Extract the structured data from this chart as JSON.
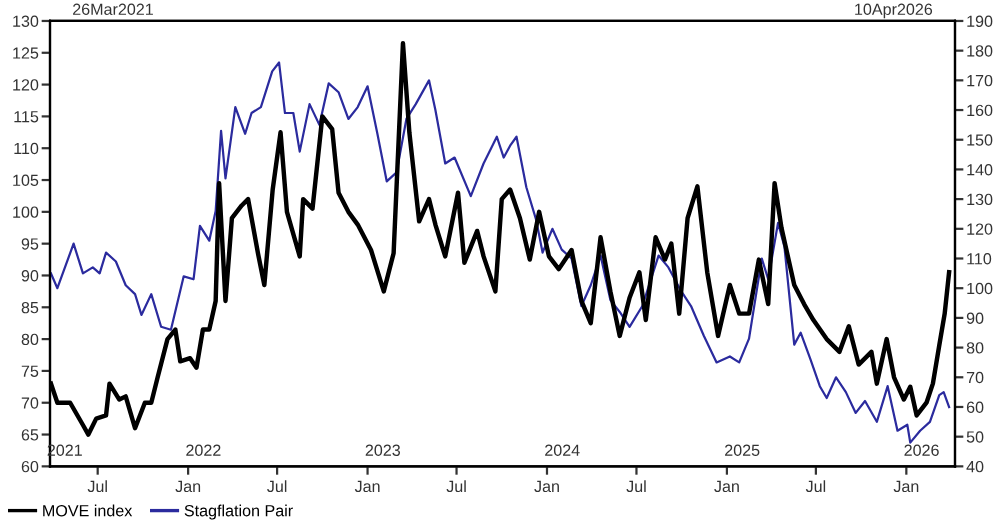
{
  "chart_data": {
    "type": "line",
    "annotations": [
      "26Mar2021",
      "10Apr2026"
    ],
    "xlim": [
      "2021-03-26",
      "2026-04-10"
    ],
    "xticks": [
      {
        "value": "2021-07-01",
        "label": "Jul"
      },
      {
        "value": "2022-01-01",
        "label": "Jan"
      },
      {
        "value": "2022-07-01",
        "label": "Jul"
      },
      {
        "value": "2023-01-01",
        "label": "Jan"
      },
      {
        "value": "2023-07-01",
        "label": "Jul"
      },
      {
        "value": "2024-01-01",
        "label": "Jan"
      },
      {
        "value": "2024-07-01",
        "label": "Jul"
      },
      {
        "value": "2025-01-01",
        "label": "Jan"
      },
      {
        "value": "2025-07-01",
        "label": "Jul"
      },
      {
        "value": "2026-01-01",
        "label": "Jan"
      }
    ],
    "x2lim": [
      "2021-03-26",
      "2026-04-10"
    ],
    "x2ticks": [
      {
        "value": "2021-04-25",
        "label": "2021"
      },
      {
        "value": "2022-02-01",
        "label": "2022"
      },
      {
        "value": "2023-02-01",
        "label": "2023"
      },
      {
        "value": "2024-02-01",
        "label": "2024"
      },
      {
        "value": "2025-02-01",
        "label": "2025"
      },
      {
        "value": "2026-02-01",
        "label": "2026"
      }
    ],
    "ylim": [
      60,
      130
    ],
    "yticks": [
      60,
      65,
      70,
      75,
      80,
      85,
      90,
      95,
      100,
      105,
      110,
      115,
      120,
      125,
      130
    ],
    "y2lim": [
      40,
      190
    ],
    "y2ticks": [
      40,
      50,
      60,
      70,
      80,
      90,
      100,
      110,
      120,
      130,
      140,
      150,
      160,
      170,
      180,
      190
    ],
    "grid": false,
    "legend": "bottom left",
    "marker": "none",
    "line_style": "solid",
    "series": [
      {
        "name": "MOVE index",
        "color": "#000000",
        "axis": "y",
        "x": [
          "2021-03-28",
          "2021-04-10",
          "2021-05-06",
          "2021-06-01",
          "2021-06-12",
          "2021-06-28",
          "2021-07-18",
          "2021-07-25",
          "2021-08-14",
          "2021-08-27",
          "2021-09-15",
          "2021-10-05",
          "2021-10-18",
          "2021-10-31",
          "2021-11-20",
          "2021-12-06",
          "2021-12-16",
          "2022-01-05",
          "2022-01-18",
          "2022-01-31",
          "2022-02-13",
          "2022-02-26",
          "2022-03-05",
          "2022-03-18",
          "2022-03-31",
          "2022-04-20",
          "2022-05-03",
          "2022-05-23",
          "2022-06-05",
          "2022-06-22",
          "2022-07-08",
          "2022-07-21",
          "2022-08-16",
          "2022-08-23",
          "2022-09-11",
          "2022-10-01",
          "2022-10-21",
          "2022-11-03",
          "2022-11-23",
          "2022-12-12",
          "2023-01-08",
          "2023-02-03",
          "2023-02-23",
          "2023-03-14",
          "2023-03-27",
          "2023-04-16",
          "2023-05-06",
          "2023-05-19",
          "2023-06-08",
          "2023-07-04",
          "2023-07-17",
          "2023-08-12",
          "2023-08-25",
          "2023-09-18",
          "2023-10-01",
          "2023-10-18",
          "2023-11-07",
          "2023-11-27",
          "2023-12-16",
          "2024-01-05",
          "2024-01-25",
          "2024-02-20",
          "2024-03-11",
          "2024-03-30",
          "2024-04-19",
          "2024-05-09",
          "2024-05-28",
          "2024-06-17",
          "2024-07-07",
          "2024-07-20",
          "2024-08-09",
          "2024-08-28",
          "2024-09-10",
          "2024-09-26",
          "2024-10-13",
          "2024-11-02",
          "2024-11-22",
          "2024-12-14",
          "2025-01-07",
          "2025-01-26",
          "2025-02-15",
          "2025-03-07",
          "2025-03-26",
          "2025-04-08",
          "2025-04-22",
          "2025-05-18",
          "2025-06-07",
          "2025-06-26",
          "2025-07-23",
          "2025-08-18",
          "2025-09-06",
          "2025-09-26",
          "2025-10-22",
          "2025-11-02",
          "2025-11-22",
          "2025-12-07",
          "2025-12-27",
          "2026-01-09",
          "2026-01-22",
          "2026-02-11",
          "2026-02-24",
          "2026-03-09",
          "2026-03-20",
          "2026-03-29"
        ],
        "values": [
          73,
          70,
          70,
          66.5,
          65,
          67.5,
          68,
          73,
          70.5,
          71,
          66,
          70,
          70,
          74,
          80,
          81.5,
          76.5,
          77,
          75.5,
          81.5,
          81.5,
          86,
          104.5,
          86,
          99,
          101,
          102,
          93.5,
          88.5,
          103.5,
          112.5,
          100,
          93,
          102,
          100.5,
          115,
          113,
          103,
          100,
          98,
          94,
          87.5,
          93.5,
          126.5,
          112.5,
          98.5,
          102,
          98,
          93,
          103,
          92,
          97,
          93,
          87.5,
          102,
          103.5,
          99,
          92.5,
          100,
          93,
          91,
          94,
          86,
          82.5,
          96,
          87.5,
          80.5,
          86.5,
          90.5,
          83,
          96,
          92.5,
          95,
          84,
          99,
          104,
          90.5,
          80.5,
          88.5,
          84,
          84,
          92.5,
          85.5,
          104.5,
          97.5,
          88.5,
          85.5,
          83,
          80,
          78,
          82,
          76,
          78,
          73,
          80,
          74,
          70.5,
          72.5,
          68,
          70,
          73,
          79,
          84,
          90.5
        ]
      },
      {
        "name": "Stagflation Pair",
        "color": "#2b2b9e",
        "axis": "y2",
        "x": [
          "2021-03-28",
          "2021-04-10",
          "2021-05-13",
          "2021-06-01",
          "2021-06-21",
          "2021-07-05",
          "2021-07-18",
          "2021-08-07",
          "2021-08-27",
          "2021-09-15",
          "2021-09-28",
          "2021-10-18",
          "2021-11-07",
          "2021-11-27",
          "2021-12-23",
          "2022-01-12",
          "2022-01-25",
          "2022-02-13",
          "2022-02-26",
          "2022-03-09",
          "2022-03-18",
          "2022-04-07",
          "2022-04-27",
          "2022-05-10",
          "2022-05-29",
          "2022-06-21",
          "2022-07-05",
          "2022-07-17",
          "2022-08-03",
          "2022-08-16",
          "2022-09-05",
          "2022-09-25",
          "2022-10-14",
          "2022-11-03",
          "2022-11-23",
          "2022-12-12",
          "2023-01-01",
          "2023-01-21",
          "2023-02-09",
          "2023-03-01",
          "2023-03-21",
          "2023-04-09",
          "2023-05-06",
          "2023-05-19",
          "2023-06-08",
          "2023-06-27",
          "2023-07-30",
          "2023-08-25",
          "2023-09-21",
          "2023-10-05",
          "2023-10-18",
          "2023-10-31",
          "2023-11-20",
          "2023-12-10",
          "2023-12-23",
          "2024-01-12",
          "2024-01-31",
          "2024-02-20",
          "2024-03-11",
          "2024-03-30",
          "2024-04-19",
          "2024-05-09",
          "2024-05-28",
          "2024-06-17",
          "2024-07-13",
          "2024-08-15",
          "2024-09-04",
          "2024-09-30",
          "2024-10-20",
          "2024-11-15",
          "2024-12-11",
          "2025-01-07",
          "2025-01-26",
          "2025-02-15",
          "2025-03-13",
          "2025-03-26",
          "2025-04-15",
          "2025-04-28",
          "2025-05-18",
          "2025-05-31",
          "2025-06-20",
          "2025-07-09",
          "2025-07-23",
          "2025-08-11",
          "2025-08-31",
          "2025-09-20",
          "2025-10-09",
          "2025-11-02",
          "2025-11-24",
          "2025-12-14",
          "2026-01-03",
          "2026-01-09",
          "2026-01-29",
          "2026-02-18",
          "2026-03-09",
          "2026-03-18",
          "2026-03-29"
        ],
        "values": [
          105,
          100,
          115,
          105,
          107,
          105,
          112,
          109,
          101,
          98,
          91,
          98,
          87,
          86,
          104,
          103,
          121,
          116,
          126,
          153,
          137,
          161,
          152,
          159,
          161,
          173,
          176,
          159,
          159,
          146,
          162,
          155,
          169,
          166,
          157,
          161,
          168,
          152,
          136,
          139,
          157,
          162,
          170,
          160,
          142,
          144,
          131,
          142,
          151,
          144,
          148,
          151,
          134,
          123,
          112,
          120,
          113,
          110,
          94,
          101,
          111,
          96,
          92,
          87,
          94,
          111,
          107,
          99,
          94,
          84,
          75,
          77,
          75,
          83,
          110,
          103,
          122,
          114,
          81,
          85,
          76,
          67,
          63,
          70,
          65,
          58,
          62,
          55,
          67,
          52,
          54,
          48,
          52,
          55,
          64,
          65,
          60
        ]
      }
    ]
  }
}
